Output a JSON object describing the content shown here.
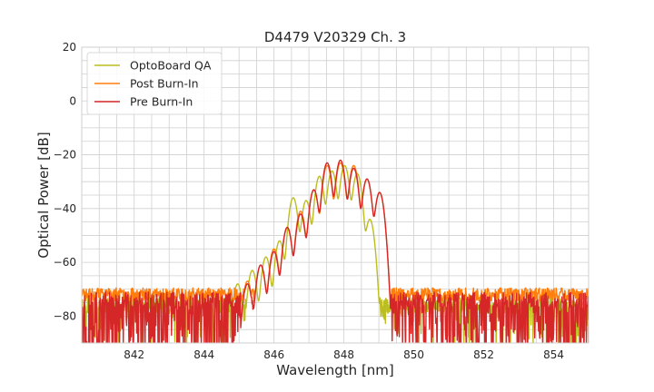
{
  "chart_data": {
    "type": "line",
    "title": "D4479 V20329 Ch. 3",
    "xlabel": "Wavelength [nm]",
    "ylabel": "Optical Power [dB]",
    "xlim": [
      840.5,
      855.0
    ],
    "ylim": [
      -90,
      20
    ],
    "xticks": [
      842,
      844,
      846,
      848,
      850,
      852,
      854
    ],
    "yticks": [
      20,
      0,
      -20,
      -40,
      -60,
      -80
    ],
    "grid": true,
    "legend": "top-left",
    "noise_floor_range": [
      840.5,
      849.2
    ],
    "noise_level": -72,
    "series": [
      {
        "name": "OptoBoard QA",
        "color": "#bcbd22",
        "peaks": [
          [
            844.96,
            -68
          ],
          [
            845.38,
            -63
          ],
          [
            845.77,
            -58
          ],
          [
            846.16,
            -52
          ],
          [
            846.55,
            -36
          ],
          [
            846.92,
            -37
          ],
          [
            847.3,
            -28
          ],
          [
            847.66,
            -26
          ],
          [
            848.02,
            -24
          ],
          [
            848.38,
            -27
          ],
          [
            848.74,
            -44
          ],
          [
            849.1,
            -80
          ]
        ]
      },
      {
        "name": "Post Burn-In",
        "color": "#ff7f0e",
        "peaks": [
          [
            845.24,
            -67
          ],
          [
            845.62,
            -61
          ],
          [
            846.0,
            -55
          ],
          [
            846.38,
            -47
          ],
          [
            846.76,
            -41
          ],
          [
            847.14,
            -33
          ],
          [
            847.52,
            -24
          ],
          [
            847.9,
            -23
          ],
          [
            848.28,
            -24
          ],
          [
            848.66,
            -29
          ],
          [
            849.02,
            -34
          ]
        ]
      },
      {
        "name": "Pre Burn-In",
        "color": "#d62728",
        "peaks": [
          [
            845.24,
            -68
          ],
          [
            845.62,
            -61
          ],
          [
            846.0,
            -56
          ],
          [
            846.38,
            -47
          ],
          [
            846.76,
            -42
          ],
          [
            847.14,
            -33
          ],
          [
            847.52,
            -23
          ],
          [
            847.9,
            -22
          ],
          [
            848.28,
            -25
          ],
          [
            848.66,
            -29
          ],
          [
            849.02,
            -34
          ]
        ]
      }
    ]
  }
}
